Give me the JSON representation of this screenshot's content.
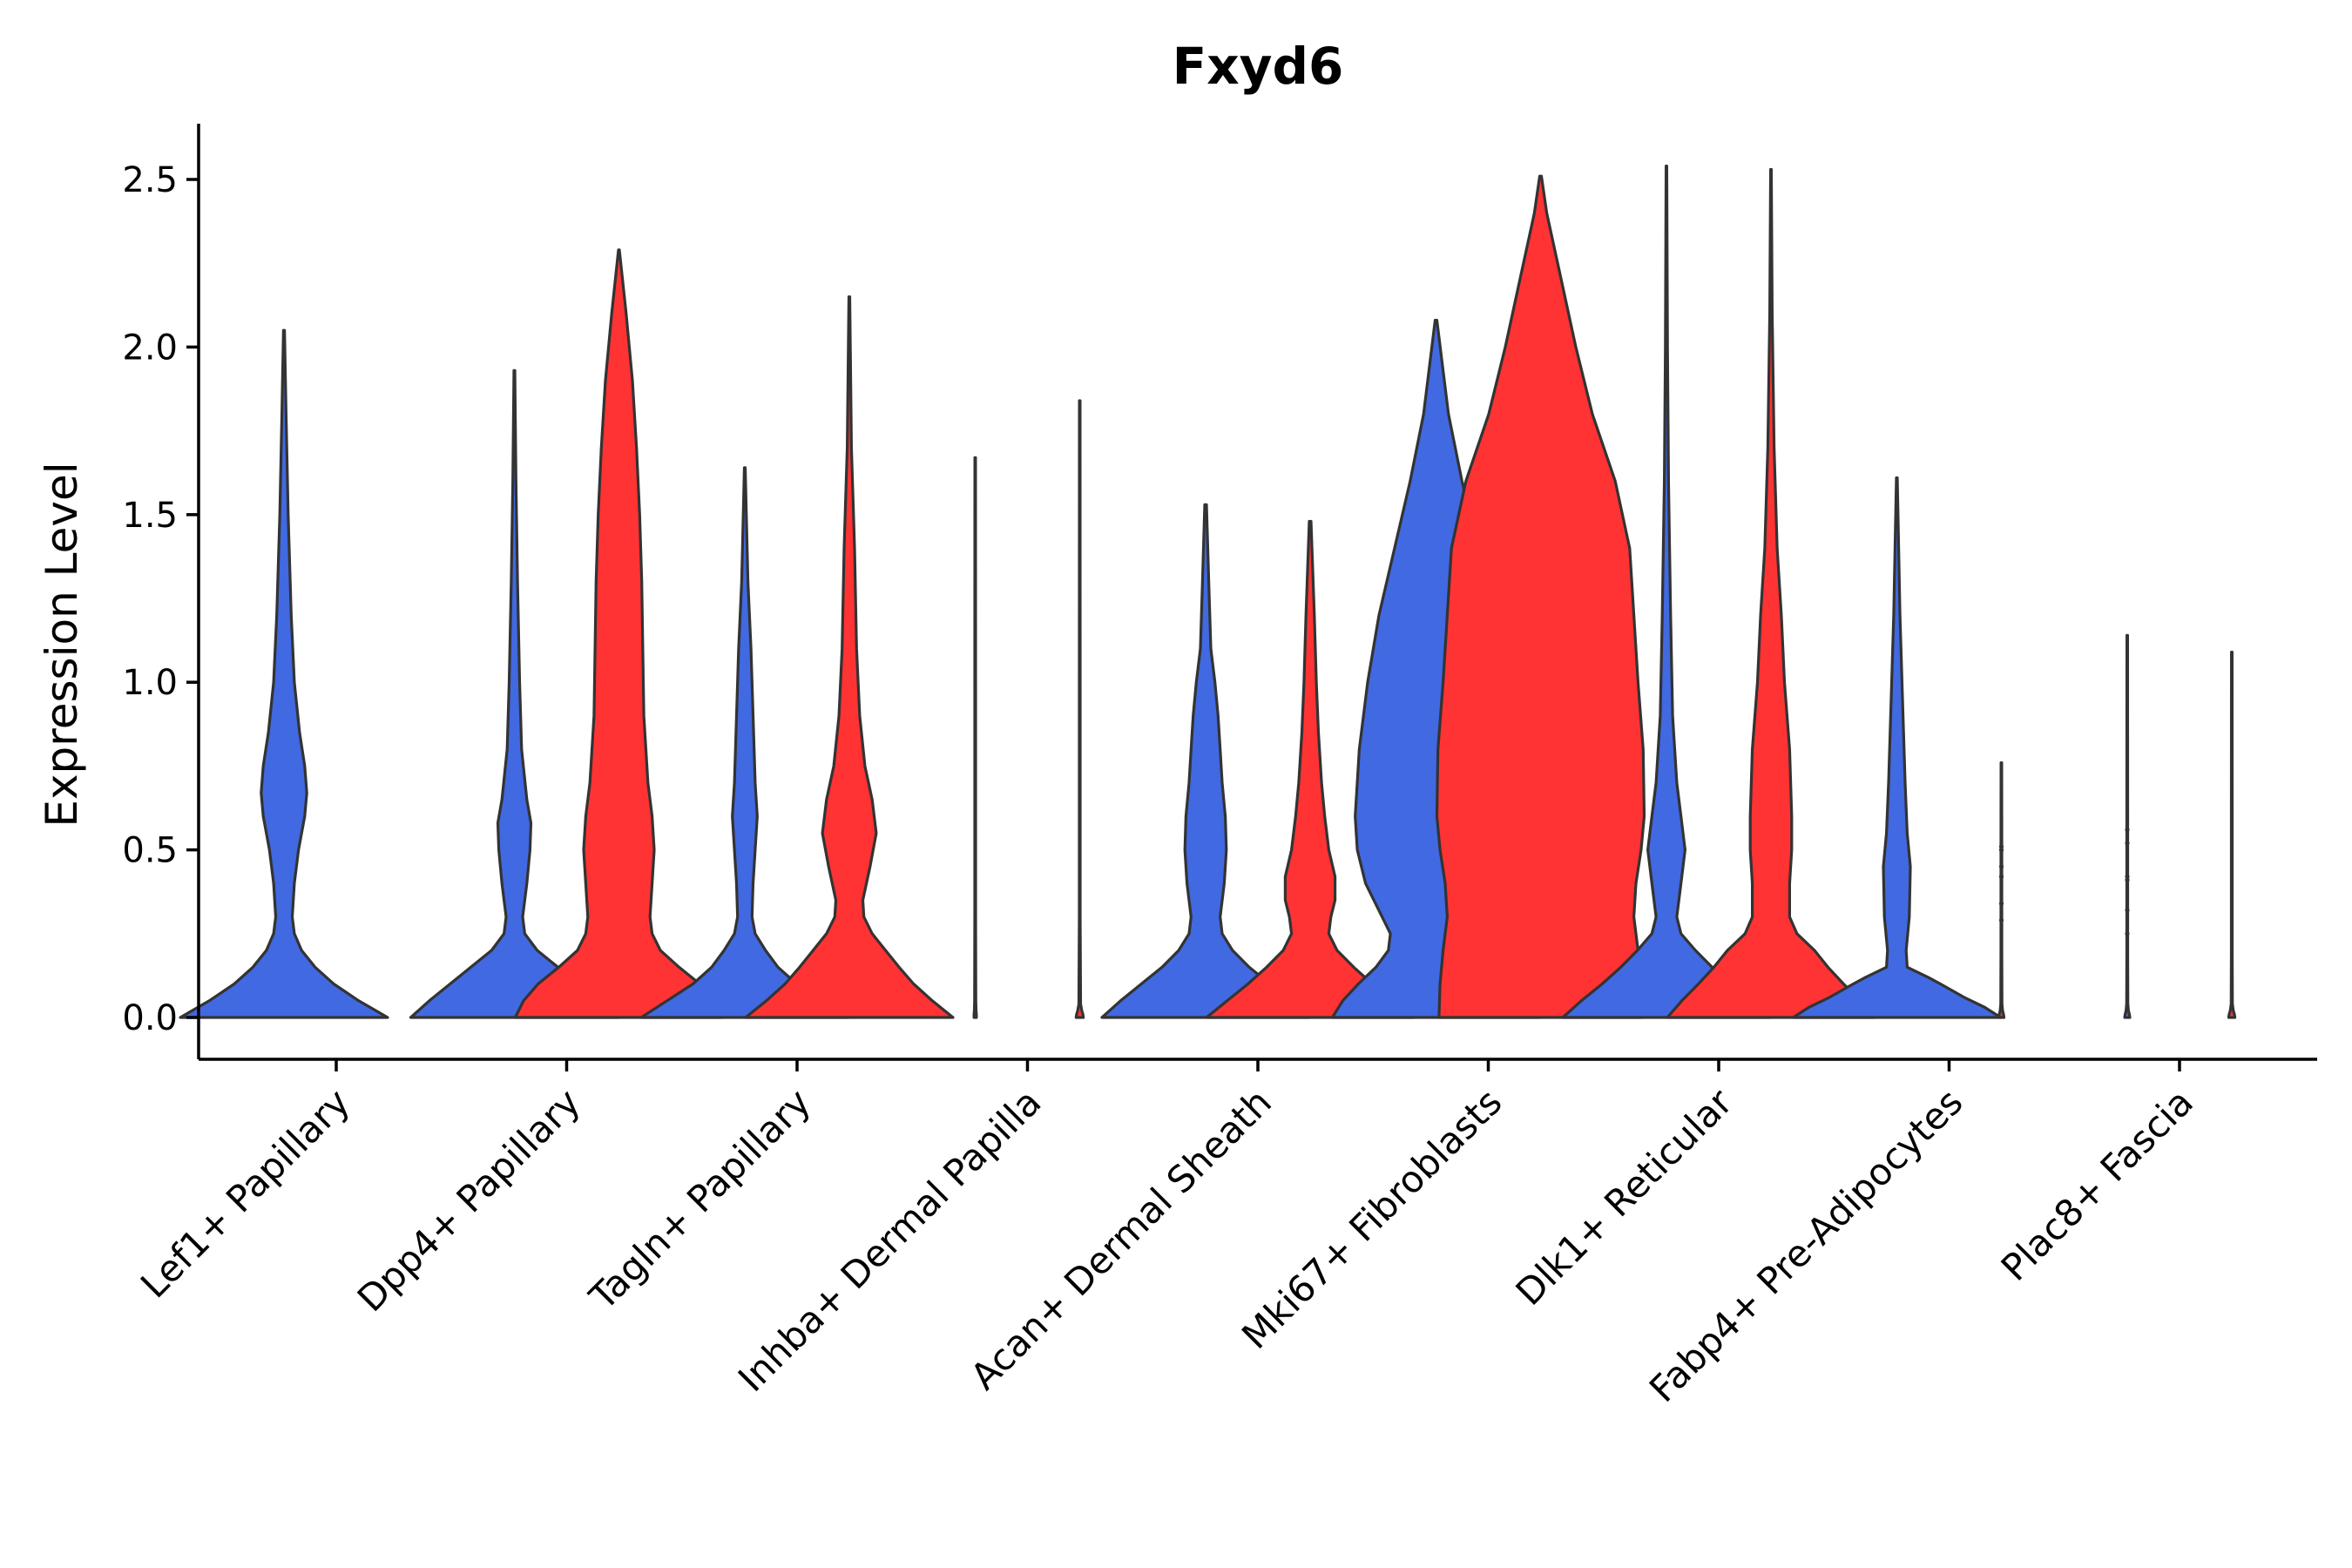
{
  "chart_data": {
    "type": "violin",
    "title": "Fxyd6",
    "xlabel": "",
    "ylabel": "Expression Level",
    "ylim": [
      -0.13,
      2.67
    ],
    "yticks": [
      0.0,
      0.5,
      1.0,
      1.5,
      2.0,
      2.5
    ],
    "ytick_labels": [
      "0.0",
      "0.5",
      "1.0",
      "1.5",
      "2.0",
      "2.5"
    ],
    "grid": false,
    "legend": "none",
    "colors": {
      "blue": "#4169E1",
      "red": "#FF3333",
      "outline": "#333333"
    },
    "categories": [
      "Lef1+ Papillary",
      "Dpp4+ Papillary",
      "Tagln+ Papillary",
      "Inhba+ Dermal Papilla",
      "Acan+ Dermal Sheath",
      "Mki67+ Fibroblasts",
      "Dlk1+ Reticular",
      "Fabp4+ Pre-Adipocytes",
      "Plac8+ Fascia"
    ],
    "groups": [
      {
        "category": 0,
        "side": "left",
        "color": "blue",
        "max": 2.05,
        "profile": [
          [
            0,
            1.0
          ],
          [
            0.05,
            0.72
          ],
          [
            0.1,
            0.48
          ],
          [
            0.15,
            0.3
          ],
          [
            0.2,
            0.17
          ],
          [
            0.25,
            0.1
          ],
          [
            0.3,
            0.08
          ],
          [
            0.4,
            0.1
          ],
          [
            0.5,
            0.14
          ],
          [
            0.6,
            0.2
          ],
          [
            0.67,
            0.22
          ],
          [
            0.75,
            0.2
          ],
          [
            0.85,
            0.15
          ],
          [
            1.0,
            0.1
          ],
          [
            1.2,
            0.07
          ],
          [
            1.5,
            0.04
          ],
          [
            1.8,
            0.02
          ],
          [
            2.05,
            0.005
          ]
        ]
      },
      {
        "category": 1,
        "side": "left",
        "color": "blue",
        "max": 1.93,
        "profile": [
          [
            0,
            1.0
          ],
          [
            0.05,
            0.82
          ],
          [
            0.1,
            0.62
          ],
          [
            0.15,
            0.42
          ],
          [
            0.2,
            0.22
          ],
          [
            0.25,
            0.1
          ],
          [
            0.3,
            0.08
          ],
          [
            0.4,
            0.12
          ],
          [
            0.5,
            0.15
          ],
          [
            0.58,
            0.16
          ],
          [
            0.65,
            0.12
          ],
          [
            0.8,
            0.07
          ],
          [
            1.0,
            0.05
          ],
          [
            1.3,
            0.03
          ],
          [
            1.6,
            0.015
          ],
          [
            1.93,
            0.004
          ]
        ]
      },
      {
        "category": 1,
        "side": "right",
        "color": "red",
        "max": 2.29,
        "profile": [
          [
            0,
            1.0
          ],
          [
            0.05,
            0.92
          ],
          [
            0.1,
            0.78
          ],
          [
            0.15,
            0.58
          ],
          [
            0.2,
            0.4
          ],
          [
            0.25,
            0.32
          ],
          [
            0.3,
            0.3
          ],
          [
            0.4,
            0.32
          ],
          [
            0.5,
            0.34
          ],
          [
            0.6,
            0.32
          ],
          [
            0.7,
            0.28
          ],
          [
            0.9,
            0.24
          ],
          [
            1.1,
            0.23
          ],
          [
            1.3,
            0.22
          ],
          [
            1.5,
            0.2
          ],
          [
            1.7,
            0.17
          ],
          [
            1.9,
            0.13
          ],
          [
            2.1,
            0.07
          ],
          [
            2.29,
            0.004
          ]
        ]
      },
      {
        "category": 2,
        "side": "left",
        "color": "blue",
        "max": 1.64,
        "profile": [
          [
            0,
            1.0
          ],
          [
            0.05,
            0.75
          ],
          [
            0.1,
            0.5
          ],
          [
            0.15,
            0.32
          ],
          [
            0.2,
            0.2
          ],
          [
            0.25,
            0.1
          ],
          [
            0.3,
            0.07
          ],
          [
            0.4,
            0.08
          ],
          [
            0.5,
            0.1
          ],
          [
            0.6,
            0.12
          ],
          [
            0.7,
            0.1
          ],
          [
            0.9,
            0.08
          ],
          [
            1.1,
            0.06
          ],
          [
            1.3,
            0.03
          ],
          [
            1.64,
            0.004
          ]
        ]
      },
      {
        "category": 2,
        "side": "right",
        "color": "red",
        "max": 2.15,
        "profile": [
          [
            0,
            1.0
          ],
          [
            0.05,
            0.8
          ],
          [
            0.1,
            0.62
          ],
          [
            0.15,
            0.48
          ],
          [
            0.2,
            0.35
          ],
          [
            0.25,
            0.22
          ],
          [
            0.3,
            0.14
          ],
          [
            0.35,
            0.13
          ],
          [
            0.45,
            0.2
          ],
          [
            0.55,
            0.26
          ],
          [
            0.65,
            0.22
          ],
          [
            0.75,
            0.15
          ],
          [
            0.9,
            0.1
          ],
          [
            1.1,
            0.07
          ],
          [
            1.4,
            0.05
          ],
          [
            1.7,
            0.02
          ],
          [
            2.15,
            0.004
          ]
        ]
      },
      {
        "category": 3,
        "side": "left",
        "color": "blue",
        "max": 1.67,
        "profile": [
          [
            0,
            0.012
          ],
          [
            0.01,
            0.012
          ],
          [
            0.02,
            0.008
          ],
          [
            0.05,
            0.006
          ],
          [
            0.3,
            0.004
          ],
          [
            1.0,
            0.004
          ],
          [
            1.67,
            0.003
          ]
        ]
      },
      {
        "category": 3,
        "side": "right",
        "color": "red",
        "max": 1.84,
        "profile": [
          [
            0,
            0.035
          ],
          [
            0.01,
            0.03
          ],
          [
            0.02,
            0.02
          ],
          [
            0.04,
            0.008
          ],
          [
            0.3,
            0.004
          ],
          [
            1.0,
            0.004
          ],
          [
            1.84,
            0.003
          ]
        ]
      },
      {
        "category": 4,
        "side": "left",
        "color": "blue",
        "max": 1.53,
        "profile": [
          [
            0,
            1.0
          ],
          [
            0.05,
            0.82
          ],
          [
            0.1,
            0.62
          ],
          [
            0.15,
            0.42
          ],
          [
            0.2,
            0.26
          ],
          [
            0.25,
            0.16
          ],
          [
            0.3,
            0.14
          ],
          [
            0.4,
            0.18
          ],
          [
            0.5,
            0.2
          ],
          [
            0.6,
            0.19
          ],
          [
            0.7,
            0.16
          ],
          [
            0.8,
            0.14
          ],
          [
            0.9,
            0.12
          ],
          [
            1.0,
            0.09
          ],
          [
            1.1,
            0.05
          ],
          [
            1.3,
            0.03
          ],
          [
            1.53,
            0.008
          ]
        ]
      },
      {
        "category": 4,
        "side": "right",
        "color": "red",
        "max": 1.48,
        "profile": [
          [
            0,
            1.0
          ],
          [
            0.05,
            0.8
          ],
          [
            0.1,
            0.6
          ],
          [
            0.15,
            0.42
          ],
          [
            0.2,
            0.26
          ],
          [
            0.25,
            0.18
          ],
          [
            0.3,
            0.2
          ],
          [
            0.35,
            0.24
          ],
          [
            0.42,
            0.24
          ],
          [
            0.5,
            0.18
          ],
          [
            0.6,
            0.14
          ],
          [
            0.7,
            0.11
          ],
          [
            0.85,
            0.08
          ],
          [
            1.0,
            0.06
          ],
          [
            1.2,
            0.04
          ],
          [
            1.48,
            0.008
          ]
        ]
      },
      {
        "category": 5,
        "side": "left",
        "color": "blue",
        "max": 2.08,
        "profile": [
          [
            0,
            1.0
          ],
          [
            0.05,
            0.9
          ],
          [
            0.1,
            0.75
          ],
          [
            0.15,
            0.58
          ],
          [
            0.2,
            0.46
          ],
          [
            0.25,
            0.44
          ],
          [
            0.3,
            0.52
          ],
          [
            0.4,
            0.68
          ],
          [
            0.5,
            0.76
          ],
          [
            0.6,
            0.78
          ],
          [
            0.8,
            0.74
          ],
          [
            1.0,
            0.66
          ],
          [
            1.2,
            0.55
          ],
          [
            1.4,
            0.4
          ],
          [
            1.6,
            0.25
          ],
          [
            1.8,
            0.12
          ],
          [
            2.08,
            0.008
          ]
        ]
      },
      {
        "category": 5,
        "side": "right",
        "color": "red",
        "max": 2.51,
        "profile": [
          [
            0,
            0.98
          ],
          [
            0.1,
            0.97
          ],
          [
            0.2,
            0.94
          ],
          [
            0.3,
            0.9
          ],
          [
            0.4,
            0.92
          ],
          [
            0.5,
            0.97
          ],
          [
            0.6,
            1.0
          ],
          [
            0.8,
            0.99
          ],
          [
            1.0,
            0.94
          ],
          [
            1.2,
            0.9
          ],
          [
            1.4,
            0.86
          ],
          [
            1.6,
            0.72
          ],
          [
            1.8,
            0.5
          ],
          [
            2.0,
            0.34
          ],
          [
            2.2,
            0.2
          ],
          [
            2.4,
            0.06
          ],
          [
            2.51,
            0.008
          ]
        ]
      },
      {
        "category": 6,
        "side": "left",
        "color": "blue",
        "max": 2.54,
        "profile": [
          [
            0,
            1.0
          ],
          [
            0.05,
            0.82
          ],
          [
            0.1,
            0.62
          ],
          [
            0.15,
            0.44
          ],
          [
            0.2,
            0.28
          ],
          [
            0.25,
            0.14
          ],
          [
            0.3,
            0.1
          ],
          [
            0.4,
            0.14
          ],
          [
            0.5,
            0.18
          ],
          [
            0.6,
            0.14
          ],
          [
            0.7,
            0.1
          ],
          [
            0.9,
            0.06
          ],
          [
            1.2,
            0.04
          ],
          [
            1.6,
            0.02
          ],
          [
            2.0,
            0.01
          ],
          [
            2.54,
            0.003
          ]
        ]
      },
      {
        "category": 6,
        "side": "right",
        "color": "red",
        "max": 2.53,
        "profile": [
          [
            0,
            1.0
          ],
          [
            0.05,
            0.86
          ],
          [
            0.1,
            0.7
          ],
          [
            0.15,
            0.55
          ],
          [
            0.2,
            0.42
          ],
          [
            0.25,
            0.25
          ],
          [
            0.3,
            0.18
          ],
          [
            0.4,
            0.18
          ],
          [
            0.5,
            0.2
          ],
          [
            0.6,
            0.2
          ],
          [
            0.8,
            0.18
          ],
          [
            1.0,
            0.13
          ],
          [
            1.2,
            0.1
          ],
          [
            1.4,
            0.06
          ],
          [
            1.7,
            0.03
          ],
          [
            2.1,
            0.012
          ],
          [
            2.53,
            0.003
          ]
        ]
      },
      {
        "category": 7,
        "side": "left",
        "color": "blue",
        "max": 1.61,
        "profile": [
          [
            0,
            1.0
          ],
          [
            0.03,
            0.85
          ],
          [
            0.06,
            0.65
          ],
          [
            0.1,
            0.42
          ],
          [
            0.12,
            0.3
          ],
          [
            0.15,
            0.1
          ],
          [
            0.2,
            0.09
          ],
          [
            0.3,
            0.12
          ],
          [
            0.45,
            0.13
          ],
          [
            0.55,
            0.1
          ],
          [
            0.7,
            0.08
          ],
          [
            0.9,
            0.06
          ],
          [
            1.2,
            0.03
          ],
          [
            1.61,
            0.004
          ]
        ]
      },
      {
        "category": 7,
        "side": "right",
        "color": "red",
        "max": 0.76,
        "profile": [
          [
            0,
            0.025
          ],
          [
            0.01,
            0.02
          ],
          [
            0.02,
            0.012
          ],
          [
            0.04,
            0.006
          ],
          [
            0.2,
            0.004
          ],
          [
            0.5,
            0.004
          ],
          [
            0.76,
            0.003
          ]
        ]
      },
      {
        "category": 8,
        "side": "left",
        "color": "blue",
        "max": 1.14,
        "profile": [
          [
            0,
            0.025
          ],
          [
            0.01,
            0.02
          ],
          [
            0.02,
            0.012
          ],
          [
            0.04,
            0.006
          ],
          [
            0.2,
            0.004
          ],
          [
            0.6,
            0.004
          ],
          [
            1.14,
            0.003
          ]
        ]
      },
      {
        "category": 8,
        "side": "right",
        "color": "red",
        "max": 1.09,
        "profile": [
          [
            0,
            0.03
          ],
          [
            0.01,
            0.025
          ],
          [
            0.02,
            0.015
          ],
          [
            0.04,
            0.006
          ],
          [
            0.2,
            0.004
          ],
          [
            0.6,
            0.004
          ],
          [
            1.09,
            0.003
          ]
        ]
      }
    ],
    "jitter": [
      {
        "category": 7,
        "side": "right",
        "values": [
          0.29,
          0.34,
          0.42,
          0.45,
          0.5,
          0.51
        ]
      },
      {
        "category": 8,
        "side": "left",
        "values": [
          0.25,
          0.32,
          0.41,
          0.42,
          0.52,
          0.56
        ]
      }
    ]
  }
}
